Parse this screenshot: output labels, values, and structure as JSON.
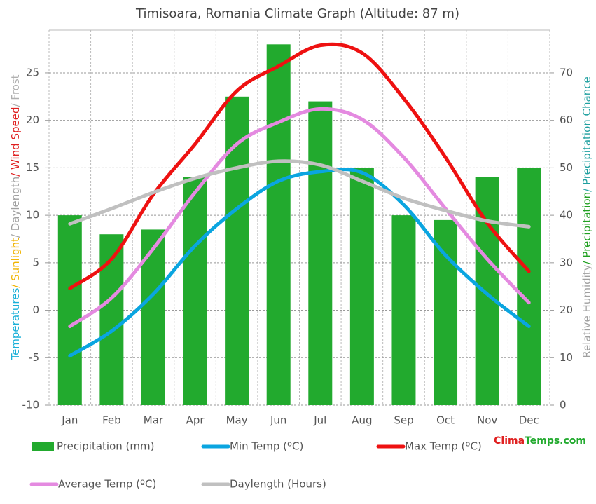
{
  "chart_data": {
    "type": "bar",
    "title": "Timisoara, Romania Climate Graph (Altitude: 87 m)",
    "y_label_parts": [
      {
        "text": "Temperatures",
        "color": "#1ab0d8"
      },
      {
        "text": "/ Sunlight",
        "color": "#f0b400"
      },
      {
        "text": "/ Daylength",
        "color": "#a0a0a0"
      },
      {
        "text": "/ Wind Speed",
        "color": "#e02020"
      },
      {
        "text": "/ Frost",
        "color": "#b0b0b0"
      }
    ],
    "y2_label_parts": [
      {
        "text": "Relative Humidity",
        "color": "#a0a0a0"
      },
      {
        "text": "/ Precipitation",
        "color": "#20a020"
      },
      {
        "text": "/ Precipitation Chance",
        "color": "#20a0a0"
      }
    ],
    "categories": [
      "Jan",
      "Feb",
      "Mar",
      "Apr",
      "May",
      "Jun",
      "Jul",
      "Aug",
      "Sep",
      "Oct",
      "Nov",
      "Dec"
    ],
    "series": [
      {
        "name": "Precipitation (mm)",
        "type": "bar",
        "axis": "y2",
        "color": "#22aa2e",
        "values": [
          40,
          36,
          37,
          48,
          65,
          76,
          64,
          50,
          40,
          39,
          48,
          50
        ]
      },
      {
        "name": "Min Temp (ºC)",
        "type": "line",
        "color": "#0aa5e0",
        "values": [
          -4.8,
          -2.2,
          1.7,
          6.8,
          10.7,
          13.6,
          14.6,
          14.5,
          11.1,
          5.8,
          1.7,
          -1.7
        ]
      },
      {
        "name": "Max Temp (ºC)",
        "type": "line",
        "color": "#ee1111",
        "values": [
          2.3,
          5.4,
          12.2,
          17.5,
          23.1,
          25.7,
          27.9,
          27.1,
          22.3,
          16.1,
          9.2,
          4.1
        ]
      },
      {
        "name": "Average Temp (ºC)",
        "type": "line",
        "color": "#e48ae0",
        "values": [
          -1.7,
          1.3,
          6.5,
          12.4,
          17.5,
          19.8,
          21.2,
          20.1,
          16.1,
          10.7,
          5.4,
          0.8
        ]
      },
      {
        "name": "Daylength (Hours)",
        "type": "line",
        "color": "#c0c0c0",
        "values": [
          9.1,
          10.7,
          12.4,
          13.9,
          15.0,
          15.7,
          15.3,
          13.6,
          11.8,
          10.5,
          9.4,
          8.8
        ]
      }
    ],
    "ylim": [
      -10,
      29.5
    ],
    "yticks": [
      -10,
      -5,
      0,
      5,
      10,
      15,
      20,
      25
    ],
    "y2lim": [
      0,
      79
    ],
    "y2ticks": [
      0,
      10,
      20,
      30,
      40,
      50,
      60,
      70
    ],
    "grid": true,
    "brand_parts": [
      {
        "text": "Clima",
        "color": "#e02020"
      },
      {
        "text": "Temps.com",
        "color": "#22aa2e"
      }
    ]
  }
}
